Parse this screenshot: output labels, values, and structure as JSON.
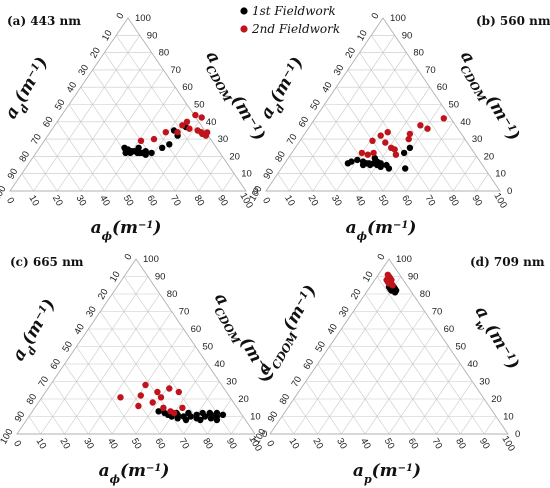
{
  "legend": {
    "items": [
      {
        "label": "1st Fieldwork",
        "color": "#000000"
      },
      {
        "label": "2nd Fieldwork",
        "color": "#c0141c"
      }
    ]
  },
  "chart_data": [
    {
      "type": "scatter",
      "subtype": "ternary",
      "panel_label": "(a) 443 nm",
      "axes": {
        "left": "a_d(m^-1)",
        "right": "a_CDOM(m^-1)",
        "bottom": "a_ϕ(m^-1)"
      },
      "axis_labels": {
        "left": "a_d(m^-1)",
        "right": "a_CDOM(m^-1)",
        "bottom": "a_ϕ(m^-1)"
      },
      "range": [
        0,
        100
      ],
      "ticks": [
        0,
        10,
        20,
        30,
        40,
        50,
        60,
        70,
        80,
        90,
        100
      ],
      "series": [
        {
          "name": "1st Fieldwork",
          "color": "#000000",
          "points": [
            {
              "bottom": 36,
              "right": 25
            },
            {
              "bottom": 37,
              "right": 24
            },
            {
              "bottom": 38,
              "right": 24
            },
            {
              "bottom": 39,
              "right": 23
            },
            {
              "bottom": 40,
              "right": 23
            },
            {
              "bottom": 41,
              "right": 23
            },
            {
              "bottom": 42,
              "right": 23
            },
            {
              "bottom": 43,
              "right": 22
            },
            {
              "bottom": 44,
              "right": 22
            },
            {
              "bottom": 45,
              "right": 22
            },
            {
              "bottom": 38,
              "right": 22
            },
            {
              "bottom": 40,
              "right": 22
            },
            {
              "bottom": 46,
              "right": 23
            },
            {
              "bottom": 47,
              "right": 21
            },
            {
              "bottom": 49,
              "right": 22
            },
            {
              "bottom": 42,
              "right": 25
            },
            {
              "bottom": 52,
              "right": 25
            },
            {
              "bottom": 54,
              "right": 27
            },
            {
              "bottom": 55,
              "right": 32
            },
            {
              "bottom": 52,
              "right": 35
            },
            {
              "bottom": 56,
              "right": 37
            }
          ]
        },
        {
          "name": "2nd Fieldwork",
          "color": "#c0141c",
          "points": [
            {
              "bottom": 41,
              "right": 29
            },
            {
              "bottom": 46,
              "right": 30
            },
            {
              "bottom": 49,
              "right": 34
            },
            {
              "bottom": 54,
              "right": 34
            },
            {
              "bottom": 54,
              "right": 38
            },
            {
              "bottom": 55,
              "right": 40
            },
            {
              "bottom": 56,
              "right": 45
            },
            {
              "bottom": 57,
              "right": 48
            },
            {
              "bottom": 58,
              "right": 36
            },
            {
              "bottom": 62,
              "right": 35
            },
            {
              "bottom": 64,
              "right": 34
            },
            {
              "bottom": 65,
              "right": 33
            },
            {
              "bottom": 66,
              "right": 35
            },
            {
              "bottom": 67,
              "right": 32
            }
          ]
        }
      ]
    },
    {
      "type": "scatter",
      "subtype": "ternary",
      "panel_label": "(b) 560 nm",
      "axes": {
        "left": "a_d(m^-1)",
        "right": "a_CDOM(m^-1)",
        "bottom": "a_ϕ(m^-1)"
      },
      "axis_labels": {
        "left": "a_d(m^-1)",
        "right": "a_CDOM(m^-1)",
        "bottom": "a_ϕ(m^-1)"
      },
      "range": [
        0,
        100
      ],
      "ticks": [
        0,
        10,
        20,
        30,
        40,
        50,
        60,
        70,
        80,
        90,
        100
      ],
      "series": [
        {
          "name": "1st Fieldwork",
          "color": "#000000",
          "points": [
            {
              "bottom": 27,
              "right": 16
            },
            {
              "bottom": 28,
              "right": 17
            },
            {
              "bottom": 30,
              "right": 18
            },
            {
              "bottom": 33,
              "right": 17
            },
            {
              "bottom": 34,
              "right": 15
            },
            {
              "bottom": 35,
              "right": 16
            },
            {
              "bottom": 36,
              "right": 16
            },
            {
              "bottom": 37,
              "right": 15
            },
            {
              "bottom": 38,
              "right": 16
            },
            {
              "bottom": 39,
              "right": 17
            },
            {
              "bottom": 40,
              "right": 15
            },
            {
              "bottom": 41,
              "right": 16
            },
            {
              "bottom": 42,
              "right": 14
            },
            {
              "bottom": 44,
              "right": 15
            },
            {
              "bottom": 46,
              "right": 13
            },
            {
              "bottom": 37,
              "right": 19
            },
            {
              "bottom": 48,
              "right": 22
            },
            {
              "bottom": 49,
              "right": 25
            },
            {
              "bottom": 53,
              "right": 13
            }
          ]
        },
        {
          "name": "2nd Fieldwork",
          "color": "#c0141c",
          "points": [
            {
              "bottom": 30,
              "right": 22
            },
            {
              "bottom": 33,
              "right": 21
            },
            {
              "bottom": 35,
              "right": 22
            },
            {
              "bottom": 31,
              "right": 29
            },
            {
              "bottom": 33,
              "right": 32
            },
            {
              "bottom": 35,
              "right": 34
            },
            {
              "bottom": 37,
              "right": 28
            },
            {
              "bottom": 41,
              "right": 25
            },
            {
              "bottom": 43,
              "right": 24
            },
            {
              "bottom": 45,
              "right": 21
            },
            {
              "bottom": 45,
              "right": 33
            },
            {
              "bottom": 46,
              "right": 30
            },
            {
              "bottom": 47,
              "right": 38
            },
            {
              "bottom": 51,
              "right": 36
            },
            {
              "bottom": 55,
              "right": 42
            }
          ]
        }
      ]
    },
    {
      "type": "scatter",
      "subtype": "ternary",
      "panel_label": "(c) 665 nm",
      "axes": {
        "left": "a_d(m^-1)",
        "right": "a_CDOM(m^-1)",
        "bottom": "a_ϕ(m^-1)"
      },
      "axis_labels": {
        "left": "a_d(m^-1)",
        "right": "a_CDOM(m^-1)",
        "bottom": "a_ϕ(m^-1)"
      },
      "range": [
        0,
        100
      ],
      "ticks": [
        0,
        10,
        20,
        30,
        40,
        50,
        60,
        70,
        80,
        90,
        100
      ],
      "series": [
        {
          "name": "1st Fieldwork",
          "color": "#000000",
          "points": [
            {
              "bottom": 56,
              "right": 12
            },
            {
              "bottom": 58,
              "right": 11
            },
            {
              "bottom": 60,
              "right": 10
            },
            {
              "bottom": 62,
              "right": 11
            },
            {
              "bottom": 63,
              "right": 9
            },
            {
              "bottom": 65,
              "right": 10
            },
            {
              "bottom": 66,
              "right": 12
            },
            {
              "bottom": 67,
              "right": 8
            },
            {
              "bottom": 68,
              "right": 10
            },
            {
              "bottom": 70,
              "right": 11
            },
            {
              "bottom": 71,
              "right": 9
            },
            {
              "bottom": 72,
              "right": 12
            },
            {
              "bottom": 73,
              "right": 8
            },
            {
              "bottom": 74,
              "right": 10
            },
            {
              "bottom": 75,
              "right": 12
            },
            {
              "bottom": 76,
              "right": 11
            },
            {
              "bottom": 77,
              "right": 9
            },
            {
              "bottom": 78,
              "right": 12
            },
            {
              "bottom": 79,
              "right": 10
            },
            {
              "bottom": 80,
              "right": 8
            },
            {
              "bottom": 81,
              "right": 11
            },
            {
              "bottom": 53,
              "right": 13
            },
            {
              "bottom": 61,
              "right": 12
            }
          ]
        },
        {
          "name": "2nd Fieldwork",
          "color": "#c0141c",
          "points": [
            {
              "bottom": 33,
              "right": 21
            },
            {
              "bottom": 40,
              "right": 28
            },
            {
              "bottom": 41,
              "right": 22
            },
            {
              "bottom": 43,
              "right": 16
            },
            {
              "bottom": 47,
              "right": 24
            },
            {
              "bottom": 48,
              "right": 18
            },
            {
              "bottom": 50,
              "right": 21
            },
            {
              "bottom": 51,
              "right": 26
            },
            {
              "bottom": 54,
              "right": 15
            },
            {
              "bottom": 56,
              "right": 24
            },
            {
              "bottom": 58,
              "right": 13
            },
            {
              "bottom": 60,
              "right": 12
            },
            {
              "bottom": 62,
              "right": 15
            }
          ]
        }
      ]
    },
    {
      "type": "scatter",
      "subtype": "ternary",
      "panel_label": "(d) 709 nm",
      "axes": {
        "left": "a_CDOM(m^-1)",
        "right": "a_w(m^-1)",
        "bottom": "a_p(m^-1)"
      },
      "axis_labels": {
        "left": "a_CDOM(m^-1)",
        "right": "a_w(m^-1)",
        "bottom": "a_p(m^-1)"
      },
      "range": [
        0,
        100
      ],
      "ticks": [
        0,
        10,
        20,
        30,
        40,
        50,
        60,
        70,
        80,
        90,
        100
      ],
      "series": [
        {
          "name": "1st Fieldwork",
          "color": "#000000",
          "points": [
            {
              "bottom": 8,
              "right": 84
            },
            {
              "bottom": 9,
              "right": 83
            },
            {
              "bottom": 10,
              "right": 82
            },
            {
              "bottom": 11,
              "right": 82
            },
            {
              "bottom": 12,
              "right": 81
            },
            {
              "bottom": 11,
              "right": 83
            },
            {
              "bottom": 10,
              "right": 84
            },
            {
              "bottom": 12,
              "right": 82
            }
          ]
        },
        {
          "name": "2nd Fieldwork",
          "color": "#c0141c",
          "points": [
            {
              "bottom": 4,
              "right": 91
            },
            {
              "bottom": 5,
              "right": 90
            },
            {
              "bottom": 6,
              "right": 89
            },
            {
              "bottom": 6,
              "right": 87
            },
            {
              "bottom": 7,
              "right": 88
            },
            {
              "bottom": 8,
              "right": 86
            },
            {
              "bottom": 5,
              "right": 88
            },
            {
              "bottom": 7,
              "right": 86
            },
            {
              "bottom": 9,
              "right": 85
            }
          ]
        }
      ]
    }
  ]
}
